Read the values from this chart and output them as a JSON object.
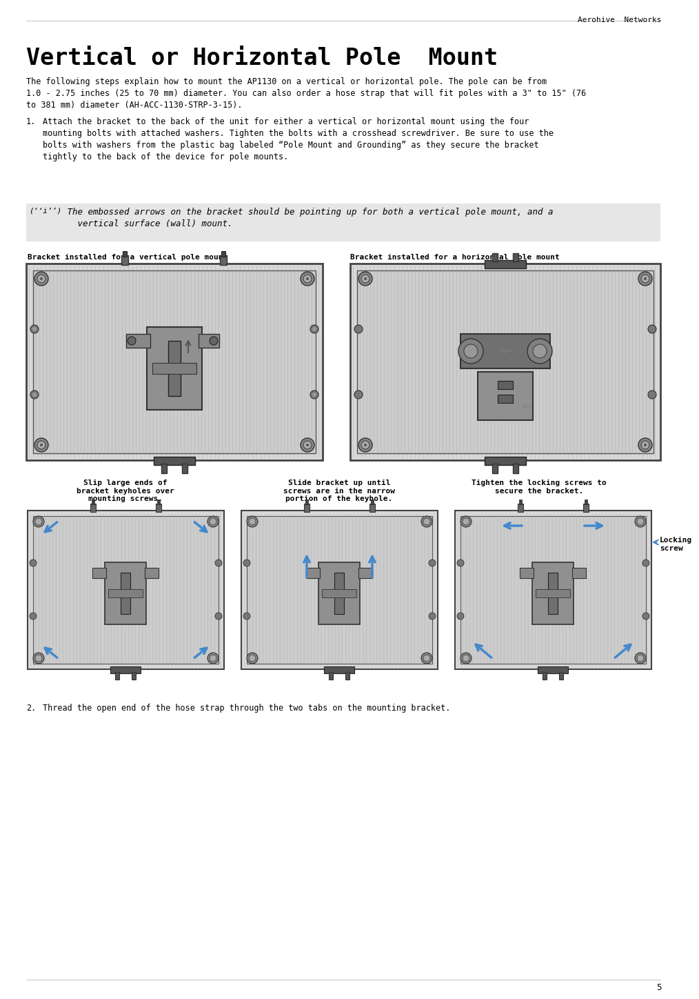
{
  "header_text": "Aerohive  Networks",
  "page_number": "5",
  "title": "Vertical or Horizontal Pole  Mount",
  "intro_text": "The following steps explain how to mount the AP1130 on a vertical or horizontal pole. The pole can be from\n1.0 - 2.75 inches (25 to 70 mm) diameter. You can also order a hose strap that will fit poles with a 3\" to 15\" (76\nto 381 mm) diameter (AH-ACC-1130-STRP-3-15).",
  "step1_label": "1.",
  "step1_text": "Attach the bracket to the back of the unit for either a vertical or horizontal mount using the four\nmounting bolts with attached washers. Tighten the bolts with a crosshead screwdriver. Be sure to use the\nbolts with washers from the plastic bag labeled “Pole Mount and Grounding” as they secure the bracket\ntightly to the back of the device for pole mounts.",
  "note_symbol": "(‘‘i’’)",
  "note_text": " The embossed arrows on the bracket should be pointing up for both a vertical pole mount, and a\n   vertical surface (wall) mount.",
  "img1_label": "Bracket installed for a vertical pole mount",
  "img2_label": "Bracket installed for a horizontal pole mount",
  "sub1_label": "Slip large ends of\nbracket keyholes over\nmounting screws.",
  "sub2_label": "Slide bracket up until\nscrews are in the narrow\nportion of the keyhole.",
  "sub3_label": "Tighten the locking screws to\nsecure the bracket.",
  "locking_screw_label": "Locking\nscrew",
  "step2_label": "2.",
  "step2_text": "Thread the open end of the hose strap through the two tabs on the mounting bracket.",
  "background_color": "#ffffff",
  "note_bg_color": "#e6e6e6",
  "blue_arrow": "#4488cc",
  "gray_body": "#c8c8c8",
  "gray_mid": "#a0a0a0",
  "gray_dark": "#606060",
  "gray_light": "#e0e0e0",
  "gray_ribs": "#d8d8d8",
  "bracket_color": "#909090",
  "bracket_dark": "#505050"
}
